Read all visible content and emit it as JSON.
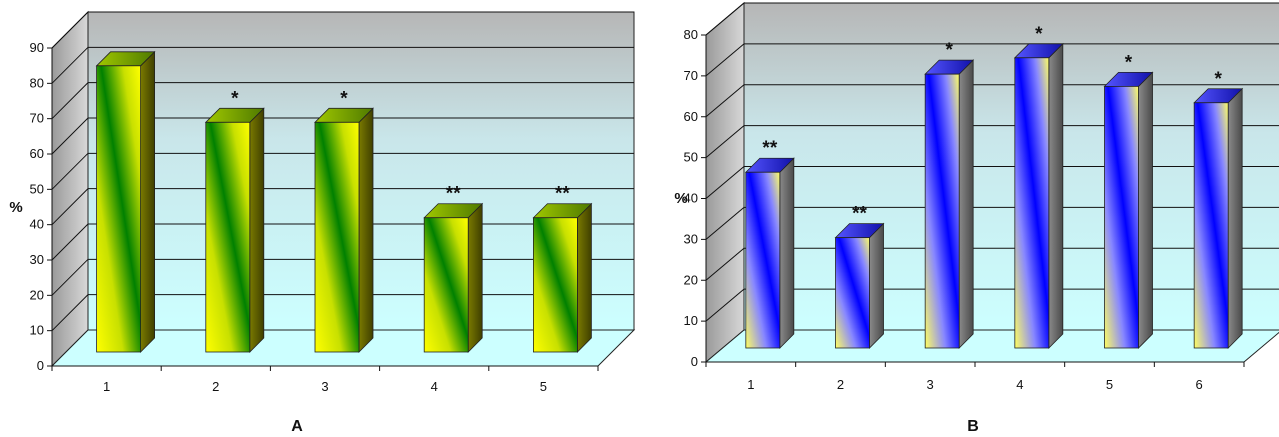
{
  "chart_data": [
    {
      "type": "bar",
      "panel_label": "A",
      "ylabel": "%",
      "ylim": [
        0,
        90
      ],
      "yticks": [
        0,
        10,
        20,
        30,
        40,
        50,
        60,
        70,
        80,
        90
      ],
      "categories": [
        "1",
        "2",
        "3",
        "4",
        "5"
      ],
      "values": [
        81,
        65,
        65,
        38,
        38
      ],
      "annotations": [
        "",
        "*",
        "*",
        "**",
        "**"
      ],
      "colors": {
        "light": "#ffff00",
        "dark": "#008000",
        "side": "#6b6b00"
      },
      "grid": true,
      "style": "3d-columns"
    },
    {
      "type": "bar",
      "panel_label": "B",
      "ylabel": "%",
      "ylim": [
        0,
        80
      ],
      "yticks": [
        0,
        10,
        20,
        30,
        40,
        50,
        60,
        70,
        80
      ],
      "categories": [
        "1",
        "2",
        "3",
        "4",
        "5",
        "6"
      ],
      "values": [
        43,
        27,
        67,
        71,
        64,
        60
      ],
      "annotations": [
        "**",
        "**",
        "*",
        "*",
        "*",
        "*"
      ],
      "colors": {
        "light": "#ffff66",
        "dark": "#0000ff",
        "side": "#707070"
      },
      "grid": true,
      "style": "3d-columns"
    }
  ]
}
